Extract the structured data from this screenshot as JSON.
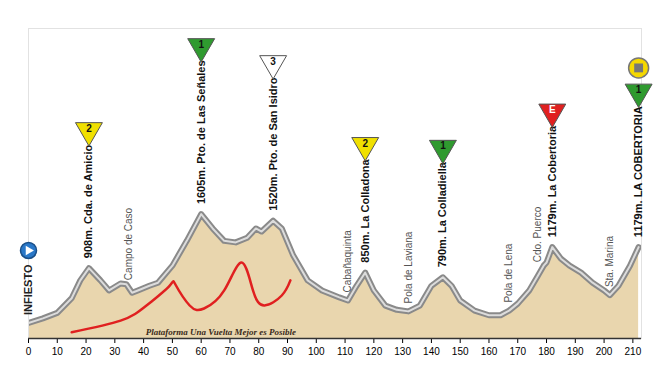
{
  "chart_data": {
    "type": "area",
    "color": "#e9d6ae",
    "x": [
      0,
      5,
      10,
      15,
      18,
      21,
      25,
      28,
      32,
      34,
      36,
      38,
      42,
      45,
      50,
      55,
      60,
      64,
      68,
      72,
      76,
      79,
      81,
      85,
      88,
      92,
      97,
      102,
      108,
      111,
      114,
      117,
      120,
      124,
      128,
      132,
      136,
      140,
      144,
      147,
      150,
      155,
      160,
      164,
      167,
      170,
      174,
      177,
      179,
      180,
      182,
      185,
      188,
      192,
      196,
      200,
      202,
      205,
      209,
      212
    ],
    "values": [
      200,
      260,
      330,
      520,
      750,
      908,
      750,
      620,
      710,
      700,
      590,
      620,
      680,
      720,
      940,
      1260,
      1605,
      1420,
      1260,
      1240,
      1300,
      1420,
      1380,
      1520,
      1420,
      1070,
      750,
      620,
      530,
      490,
      680,
      850,
      620,
      425,
      370,
      350,
      425,
      680,
      790,
      680,
      490,
      360,
      300,
      300,
      360,
      450,
      620,
      810,
      940,
      980,
      1179,
      1030,
      940,
      850,
      720,
      620,
      560,
      680,
      940,
      1179
    ],
    "xlim": [
      0,
      213
    ],
    "xticks": [
      0,
      10,
      20,
      30,
      40,
      50,
      60,
      70,
      80,
      90,
      100,
      110,
      120,
      130,
      140,
      150,
      160,
      170,
      180,
      190,
      200,
      210
    ],
    "ylim": [
      0,
      4000
    ],
    "tick_labels": "x",
    "start": {
      "x": 0,
      "y": 200,
      "label": "INFIESTO"
    },
    "climbs": [
      {
        "x": 21,
        "y": 908,
        "label": "908m. Cda. de Amicio",
        "category": "2",
        "color": "#f0e000"
      },
      {
        "x": 60,
        "y": 1605,
        "label": "1605m. Pto. de Las Señales",
        "category": "1",
        "color": "#2f9a2f"
      },
      {
        "x": 85,
        "y": 1520,
        "label": "1520m. Pto. de San Isidro",
        "category": "3",
        "color": "#ffffff"
      },
      {
        "x": 117,
        "y": 850,
        "label": "850m. La Colladona",
        "category": "2",
        "color": "#f0e000"
      },
      {
        "x": 144,
        "y": 790,
        "label": "790m. La Colladiella",
        "category": "1",
        "color": "#2f9a2f"
      },
      {
        "x": 182,
        "y": 1179,
        "label": "1179m. La Cobertoria",
        "category": "E",
        "color": "#e02020"
      },
      {
        "x": 212,
        "y": 1179,
        "label": "1179m. LA COBERTORIA",
        "category": "1",
        "color": "#2f9a2f"
      }
    ],
    "towns": [
      {
        "x": 35,
        "y": 650,
        "label": "Campo de Caso"
      },
      {
        "x": 111,
        "y": 490,
        "label": "Cabañaquinta"
      },
      {
        "x": 132,
        "y": 350,
        "label": "Pola de Laviana"
      },
      {
        "x": 167,
        "y": 360,
        "label": "Pola de Lena"
      },
      {
        "x": 177,
        "y": 880,
        "label": "Cdo. Puerco"
      },
      {
        "x": 202,
        "y": 560,
        "label": "Sta. Marina"
      }
    ],
    "highlight": {
      "label": "Plataforma Una Vuelta Mejor es Posible",
      "color": "#e02020",
      "x": [
        15,
        32,
        41,
        49,
        51,
        56,
        61,
        68,
        74,
        78,
        82,
        88,
        91
      ],
      "y": [
        80,
        230,
        425,
        680,
        700,
        426,
        387,
        620,
        980,
        620,
        426,
        555,
        750
      ]
    }
  }
}
